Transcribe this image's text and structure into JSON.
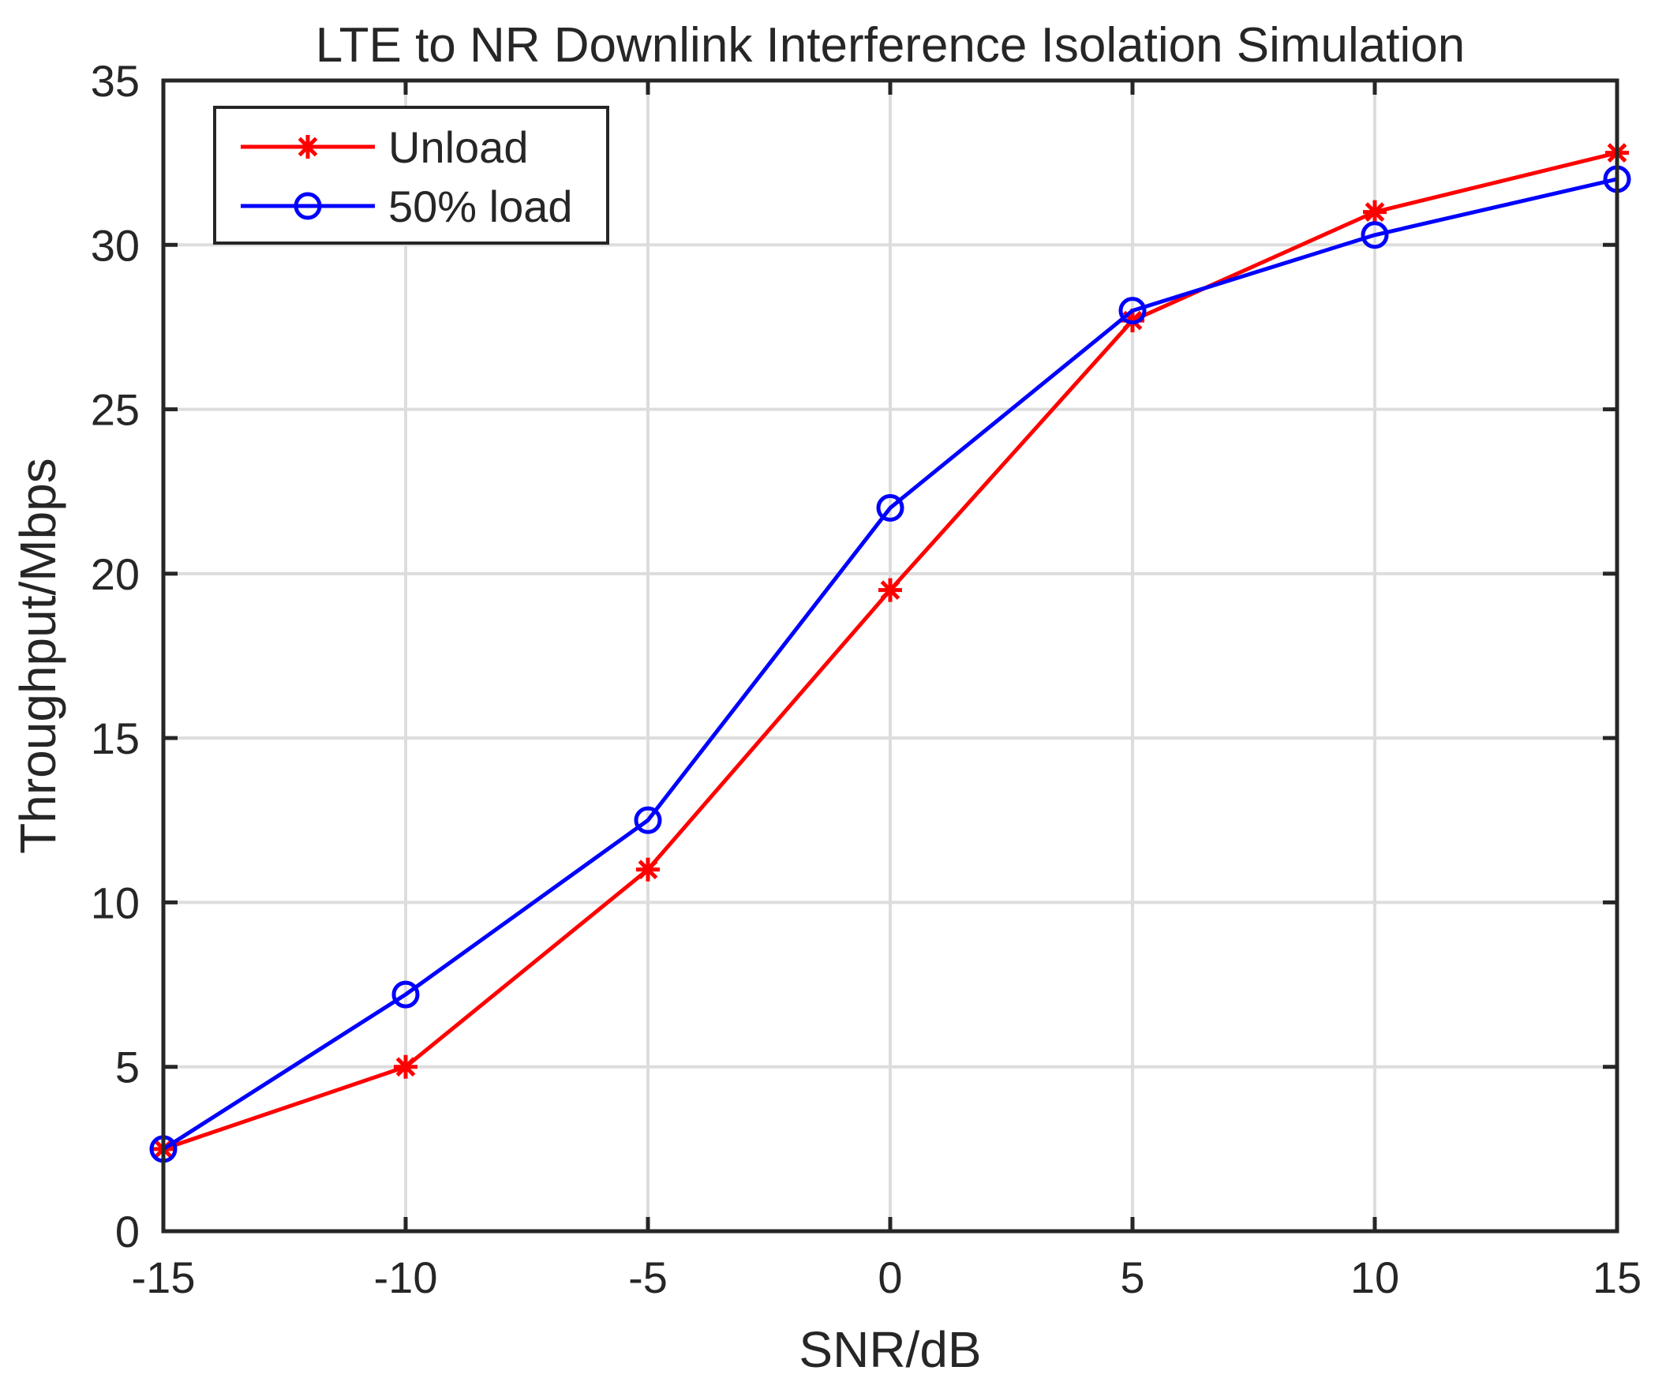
{
  "chart_data": {
    "type": "line",
    "title": "LTE to NR Downlink Interference Isolation Simulation",
    "xlabel": "SNR/dB",
    "ylabel": "Throughput/Mbps",
    "x": [
      -15,
      -10,
      -5,
      0,
      5,
      10,
      15
    ],
    "xlim": [
      -15,
      15
    ],
    "ylim": [
      0,
      35
    ],
    "xticks": [
      -15,
      -10,
      -5,
      0,
      5,
      10,
      15
    ],
    "yticks": [
      0,
      5,
      10,
      15,
      20,
      25,
      30,
      35
    ],
    "grid": true,
    "legend_position": "top-left",
    "series": [
      {
        "name": "Unload",
        "color": "#ff0000",
        "marker": "asterisk",
        "values": [
          2.5,
          5.0,
          11.0,
          19.5,
          27.7,
          31.0,
          32.8
        ]
      },
      {
        "name": "50% load",
        "color": "#0000ff",
        "marker": "circle",
        "values": [
          2.5,
          7.2,
          12.5,
          22.0,
          28.0,
          30.3,
          32.0
        ]
      }
    ]
  }
}
